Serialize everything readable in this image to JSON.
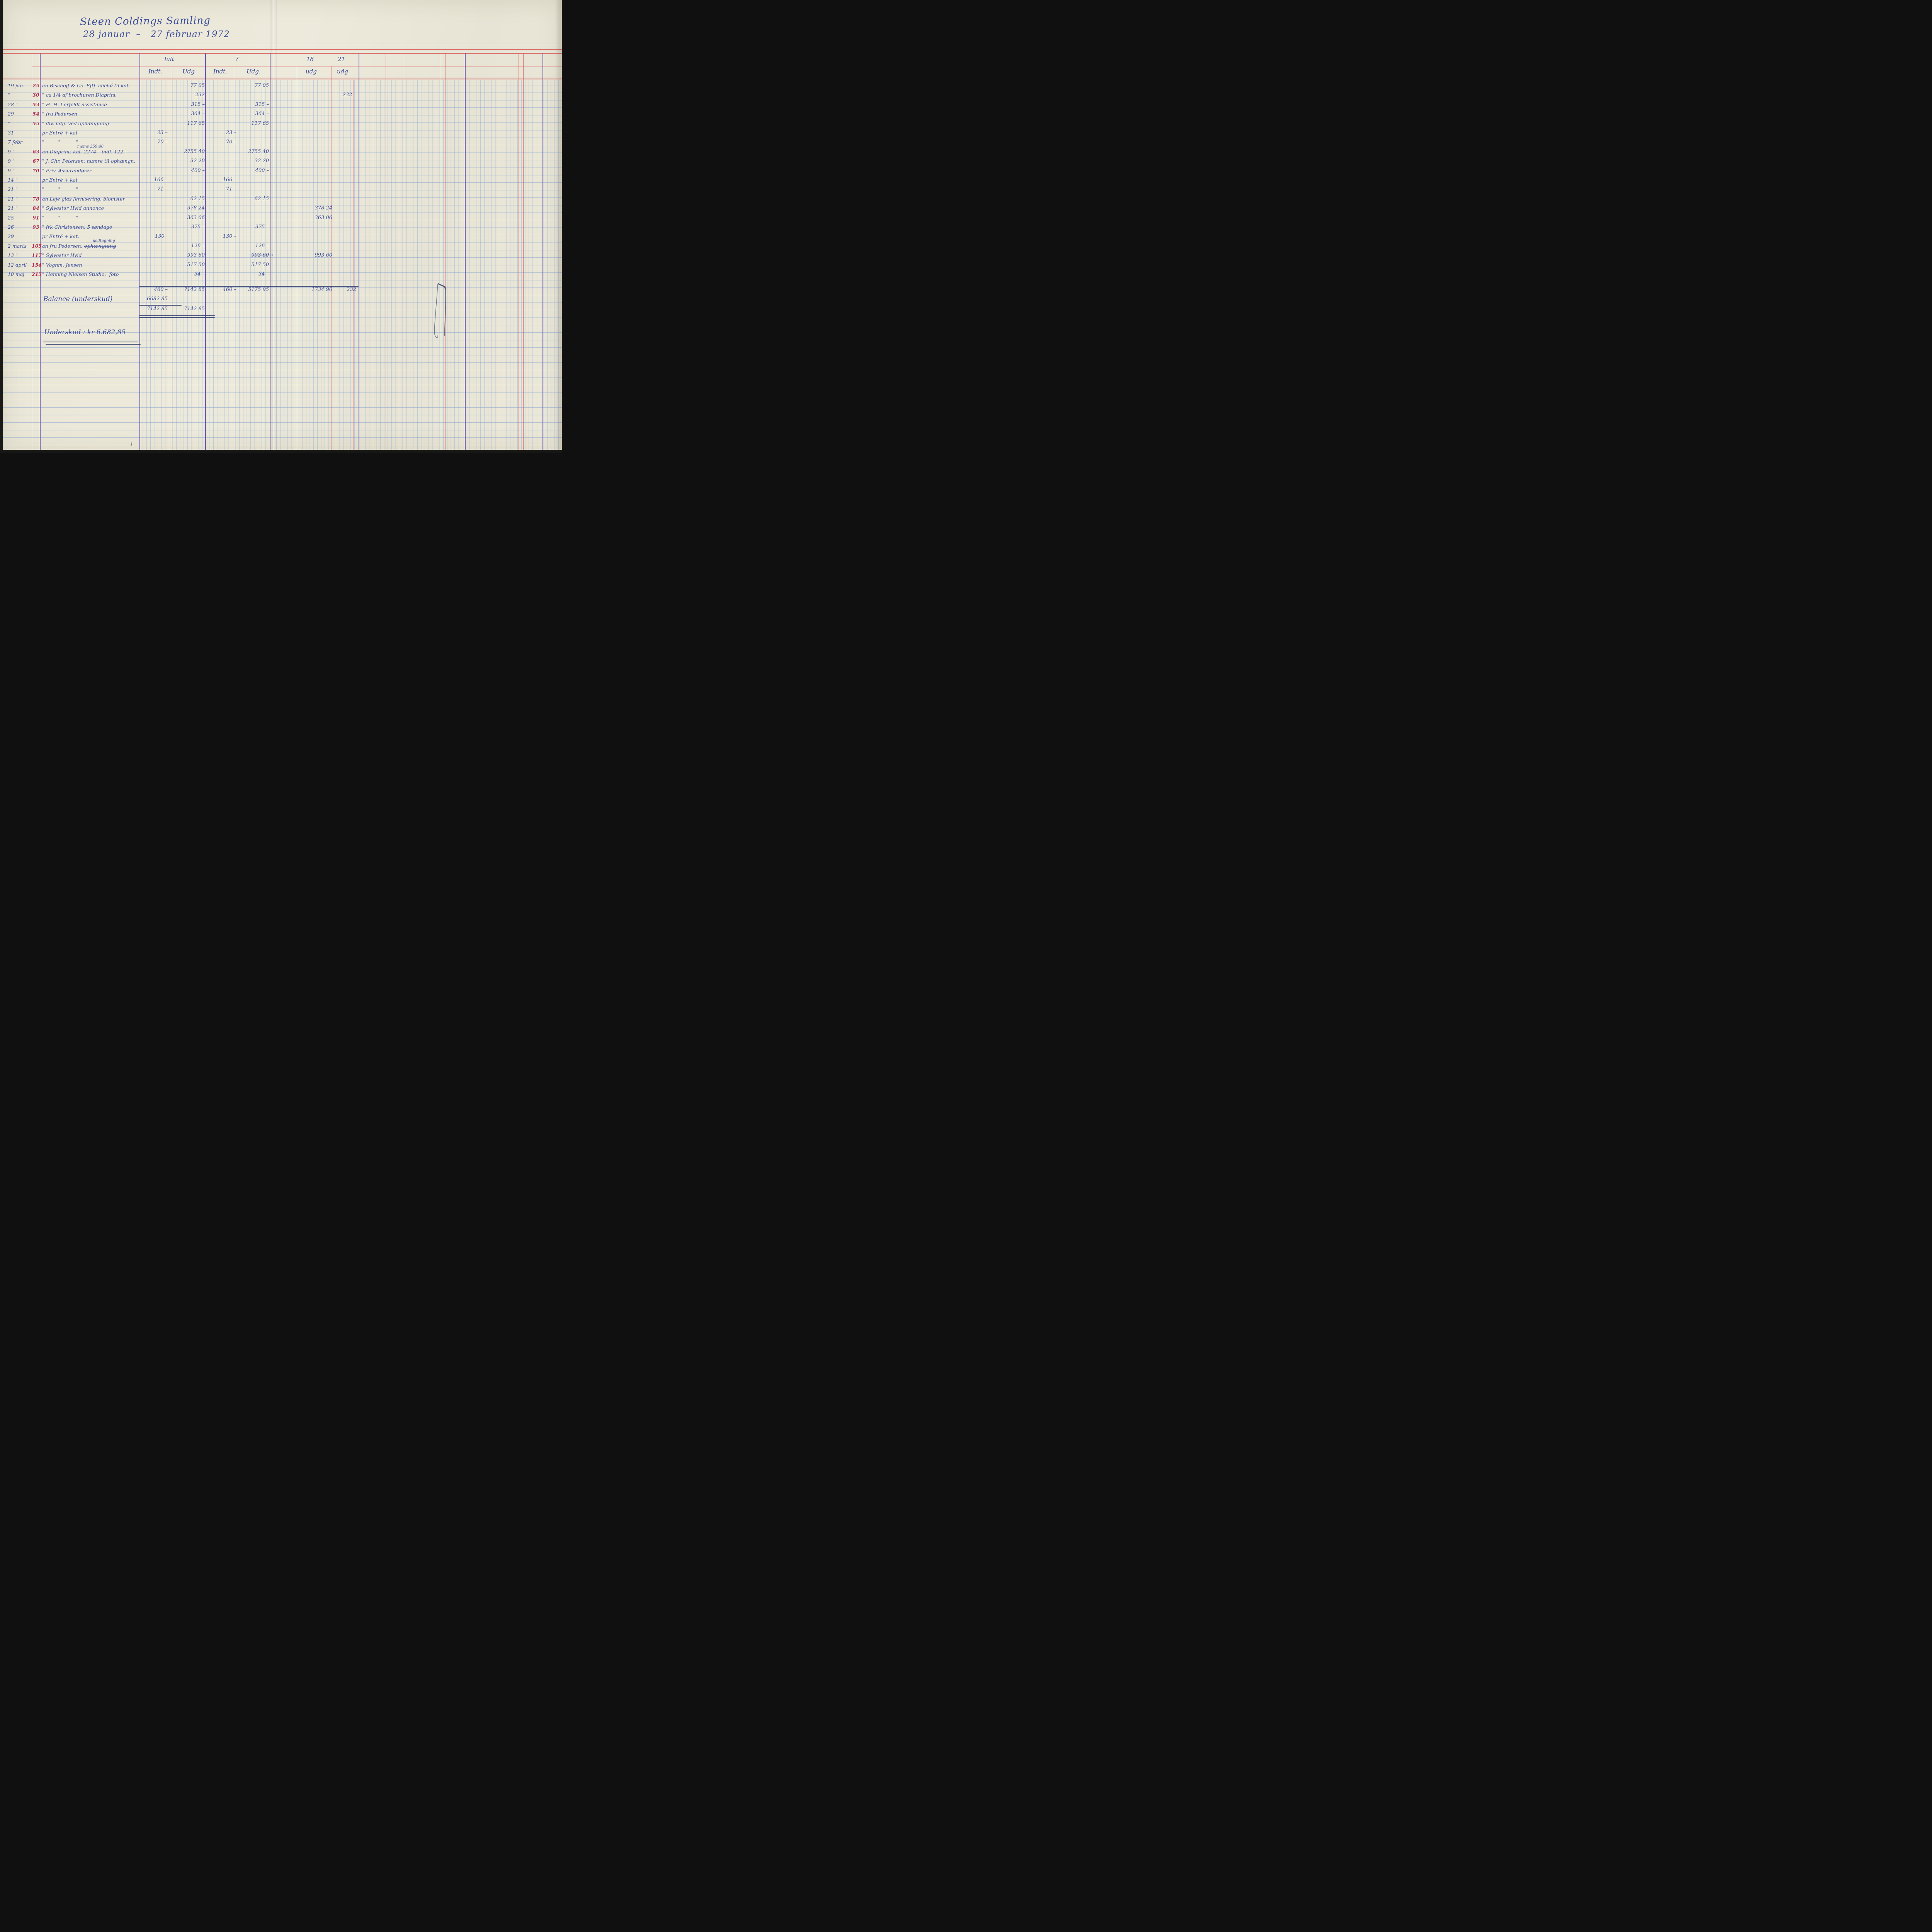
{
  "page": {
    "title_line1": "Steen Coldings Samling",
    "title_line2": "28 januar  –   27 februar 1972",
    "page_number": "1"
  },
  "colors": {
    "ink_blue": "#3c4c99",
    "ink_red": "#b52a50",
    "paper": "#eae7d9",
    "ruling_blue": "#7d9bcd",
    "ruling_red": "#d65858",
    "ruling_purple": "#6b57ae"
  },
  "header": {
    "group_ialt": "Ialt",
    "ialt_sub_indt": "Indt.",
    "ialt_sub_udg": "Udg",
    "group_7": "7",
    "c7_sub_indt": "Indt.",
    "c7_sub_udg": "Udg.",
    "group_18": "18",
    "c18_sub_udg": "udg",
    "group_21": "21",
    "c21_sub_udg": "udg"
  },
  "rows": [
    {
      "date": "19 jan.",
      "no": "25",
      "desc": "an Bischoff & Co. Eftf. cliché til kat.",
      "ialt_udg": "77 05",
      "i7_udg": "77 05"
    },
    {
      "date": "\"",
      "no": "30",
      "desc": "\" ca 1/4 af brochuren Diaprint",
      "ialt_udg": "232",
      "u21": "232 –"
    },
    {
      "date": "28 \"",
      "no": "53",
      "desc": "\" H. H. Lerfeldt assistance",
      "ialt_udg": "315 –",
      "i7_udg": "315 –"
    },
    {
      "date": "29",
      "no": "54",
      "desc": "\" fru Pedersen",
      "ialt_udg": "364 –",
      "i7_udg": "364 –"
    },
    {
      "date": "\"",
      "no": "55",
      "desc": "\" div. udg. ved ophængning",
      "ialt_udg": "117 65",
      "i7_udg": "117 65"
    },
    {
      "date": "31",
      "no": "",
      "desc": "pr Entré + kat",
      "ialt_indt": "23 –",
      "i7_indt": "23 –"
    },
    {
      "date": "7 febr",
      "no": "",
      "desc": "\"         \"          \"",
      "ialt_indt": "70 –",
      "i7_indt": "70 –"
    },
    {
      "date": "9 \"",
      "no": "63",
      "desc": "an Diaprint: kat. 2274.– indl. 122.–",
      "desc_above": "moms 359,40",
      "ialt_udg": "2755 40",
      "i7_udg": "2755 40"
    },
    {
      "date": "9 \"",
      "no": "67",
      "desc": "\" J. Chr. Petersen: numre til ophængn.",
      "ialt_udg": "32 20",
      "i7_udg": "32 20"
    },
    {
      "date": "9 \"",
      "no": "70",
      "desc": "\" Priv. Assurandører",
      "ialt_udg": "400 –",
      "i7_udg": "400 –"
    },
    {
      "date": "14 \"",
      "no": "",
      "desc": "pr Entré + kat",
      "ialt_indt": "166 –",
      "i7_indt": "166 –"
    },
    {
      "date": "21 \"",
      "no": "",
      "desc": "\"         \"          \"",
      "ialt_indt": "71 –",
      "i7_indt": "71 –"
    },
    {
      "date": "21 \"",
      "no": "78",
      "desc": "an Leje glas fernisering, blomster",
      "ialt_udg": "62 15",
      "i7_udg": "62 15"
    },
    {
      "date": "21 \"",
      "no": "84",
      "desc": "\" Sylvester Hvid annonce",
      "ialt_udg": "378 24",
      "u18": "378 24"
    },
    {
      "date": "25",
      "no": "91",
      "desc": "\"         \"          \"",
      "ialt_udg": "363 06",
      "u18": "363 06"
    },
    {
      "date": "26",
      "no": "93",
      "desc": "\" frk Christensen: 5 søndage",
      "ialt_udg": "375 –",
      "i7_udg": "375 –"
    },
    {
      "date": "29",
      "no": "",
      "desc": "pr Entré + kat.",
      "ialt_indt": "130 ·",
      "i7_indt": "130 –"
    },
    {
      "date": "2 marts",
      "no": "105",
      "desc": "an fru Pedersen: ",
      "desc_struck": "ophængning",
      "desc_above": "nedtagning",
      "ialt_udg": "126 –",
      "i7_udg": "126 –"
    },
    {
      "date": "13 \"",
      "no": "117",
      "desc": "\" Sylvester Hvid",
      "ialt_udg": "993 60",
      "i7_udg": "993 60",
      "i7_udg_struck": true,
      "i7_udg_after": "→",
      "u18": "993 60"
    },
    {
      "date": "12 april",
      "no": "154",
      "desc": "\" Vognm. Jensen",
      "ialt_udg": "517 50",
      "i7_udg": "517 50"
    },
    {
      "date": "10 maj",
      "no": "215",
      "desc": "\" Henning Nielsen Studio:  foto",
      "ialt_udg": "34 –",
      "i7_udg": "34 –"
    }
  ],
  "totals": {
    "ialt_indt": "460 –",
    "ialt_udg": "7142 85",
    "i7_indt": "460 –",
    "i7_udg": "5175 95",
    "u18": "1734 90",
    "u21": "232"
  },
  "balance": {
    "label": "Balance (underskud)",
    "ialt_indt": "6682 85"
  },
  "final_balance": {
    "ialt_indt": "7142 85",
    "ialt_udg": "7142 85"
  },
  "footnote": {
    "underskud": "Underskud : kr 6.682,85"
  }
}
